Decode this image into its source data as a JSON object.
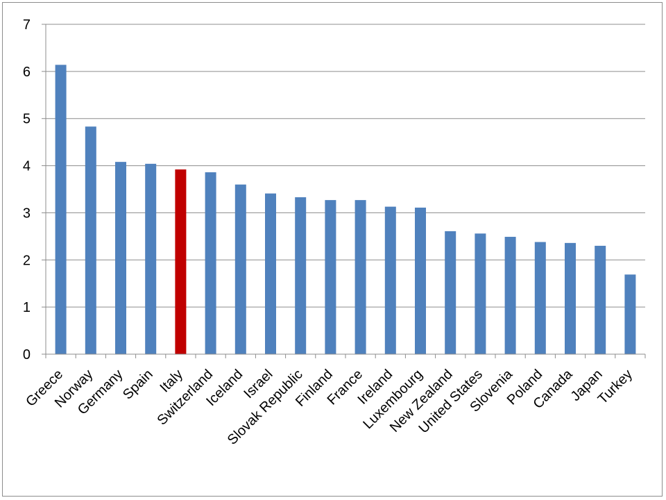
{
  "chart_data": {
    "type": "bar",
    "title": "",
    "xlabel": "",
    "ylabel": "",
    "ylim": [
      0,
      7
    ],
    "yticks": [
      0,
      1,
      2,
      3,
      4,
      5,
      6,
      7
    ],
    "grid": "horizontal",
    "legend": "none",
    "categories": [
      "Greece",
      "Norway",
      "Germany",
      "Spain",
      "Italy",
      "Switzerland",
      "Iceland",
      "Israel",
      "Slovak Republic",
      "Finland",
      "France",
      "Ireland",
      "Luxembourg",
      "New Zealand",
      "United States",
      "Slovenia",
      "Poland",
      "Canada",
      "Japan",
      "Turkey"
    ],
    "values": [
      6.14,
      4.83,
      4.08,
      4.04,
      3.92,
      3.86,
      3.6,
      3.41,
      3.33,
      3.27,
      3.27,
      3.13,
      3.11,
      2.61,
      2.56,
      2.49,
      2.38,
      2.36,
      2.3,
      1.69
    ],
    "colors": {
      "default": "#4f81bd",
      "highlight": "#c00000",
      "grid": "#8c8c8c",
      "axis": "#8c8c8c"
    },
    "highlight_category": "Italy"
  }
}
